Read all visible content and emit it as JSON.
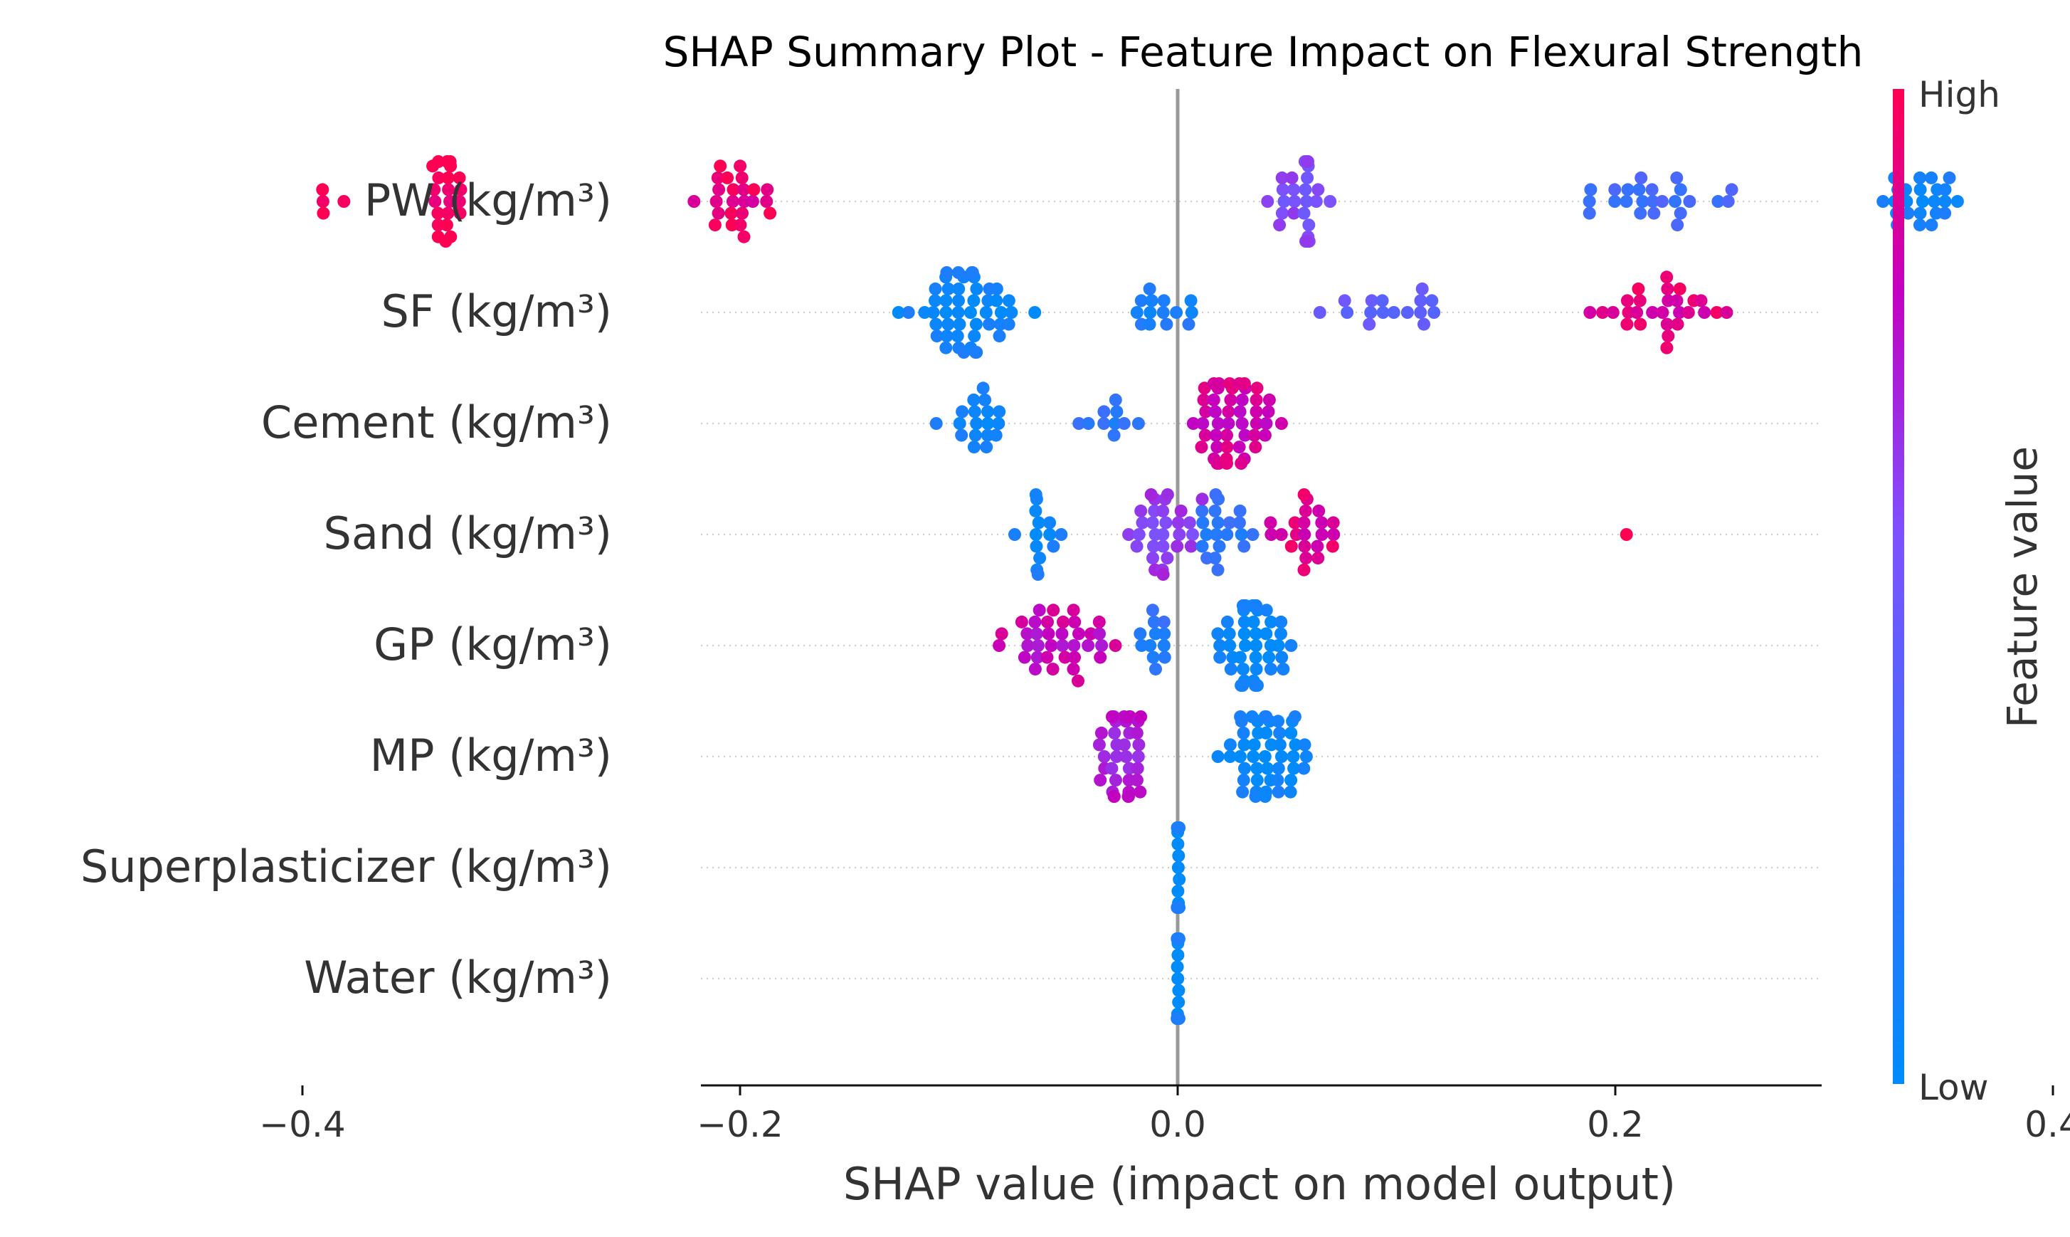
{
  "chart_data": {
    "type": "scatter",
    "subtype": "shap-beeswarm",
    "title": "SHAP Summary Plot - Feature Impact on Flexural Strength",
    "xlabel": "SHAP value (impact on model output)",
    "ylabel": "",
    "xlim": [
      -0.43,
      0.6
    ],
    "xticks": [
      -0.4,
      -0.2,
      0.0,
      0.2,
      0.4
    ],
    "xtick_labels": [
      "−0.4",
      "−0.2",
      "0.0",
      "0.2",
      "0.4"
    ],
    "reference_line": 0.0,
    "colorbar": {
      "label": "Feature value",
      "high_label": "High",
      "low_label": "Low",
      "low_color": "#008bfb",
      "high_color": "#ff0052"
    },
    "legend_position": "right",
    "features": [
      {
        "name": "PW (kg/m³)",
        "clusters": [
          {
            "center": -0.39,
            "spread": 0.012,
            "n": 4,
            "value": 1.0
          },
          {
            "center": -0.335,
            "spread": 0.012,
            "n": 22,
            "value": 1.0
          },
          {
            "center": -0.2,
            "spread": 0.02,
            "n": 24,
            "value": 0.93
          },
          {
            "center": 0.055,
            "spread": 0.016,
            "n": 26,
            "value": 0.55
          },
          {
            "center": 0.22,
            "spread": 0.04,
            "n": 24,
            "value": 0.3
          },
          {
            "center": 0.34,
            "spread": 0.02,
            "n": 24,
            "value": 0.06
          },
          {
            "center": 0.54,
            "spread": 0.0,
            "n": 1,
            "value": 0.05
          }
        ]
      },
      {
        "name": "SF (kg/m³)",
        "clusters": [
          {
            "center": -0.1,
            "spread": 0.028,
            "n": 50,
            "value": 0.06
          },
          {
            "center": 0.0,
            "spread": 0.03,
            "n": 14,
            "value": 0.12
          },
          {
            "center": 0.1,
            "spread": 0.03,
            "n": 16,
            "value": 0.45
          },
          {
            "center": 0.22,
            "spread": 0.03,
            "n": 28,
            "value": 0.9
          }
        ]
      },
      {
        "name": "Cement (kg/m³)",
        "clusters": [
          {
            "center": -0.09,
            "spread": 0.02,
            "n": 18,
            "value": 0.06
          },
          {
            "center": -0.03,
            "spread": 0.015,
            "n": 10,
            "value": 0.2
          },
          {
            "center": 0.025,
            "spread": 0.02,
            "n": 48,
            "value": 0.85
          }
        ]
      },
      {
        "name": "Sand (kg/m³)",
        "clusters": [
          {
            "center": -0.06,
            "spread": 0.012,
            "n": 14,
            "value": 0.08
          },
          {
            "center": -0.01,
            "spread": 0.02,
            "n": 30,
            "value": 0.62
          },
          {
            "center": 0.02,
            "spread": 0.015,
            "n": 20,
            "value": 0.2
          },
          {
            "center": 0.06,
            "spread": 0.018,
            "n": 22,
            "value": 0.9
          },
          {
            "center": 0.205,
            "spread": 0.0,
            "n": 1,
            "value": 1.0
          }
        ]
      },
      {
        "name": "GP (kg/m³)",
        "clusters": [
          {
            "center": -0.055,
            "spread": 0.03,
            "n": 36,
            "value": 0.8
          },
          {
            "center": -0.01,
            "spread": 0.012,
            "n": 12,
            "value": 0.18
          },
          {
            "center": 0.035,
            "spread": 0.018,
            "n": 44,
            "value": 0.04
          }
        ]
      },
      {
        "name": "MP (kg/m³)",
        "clusters": [
          {
            "center": -0.025,
            "spread": 0.015,
            "n": 36,
            "value": 0.72
          },
          {
            "center": 0.04,
            "spread": 0.02,
            "n": 48,
            "value": 0.04
          }
        ]
      },
      {
        "name": "Superplasticizer (kg/m³)",
        "clusters": [
          {
            "center": 0.0,
            "spread": 0.001,
            "n": 110,
            "value": 0.05
          }
        ]
      },
      {
        "name": "Water (kg/m³)",
        "clusters": [
          {
            "center": 0.0,
            "spread": 0.001,
            "n": 110,
            "value": 0.05
          }
        ]
      }
    ]
  }
}
